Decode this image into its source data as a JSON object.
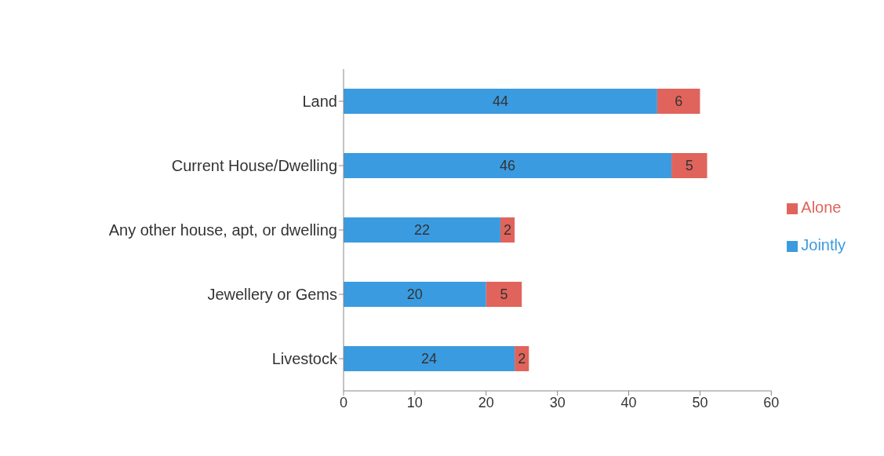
{
  "chart_data": {
    "type": "bar",
    "orientation": "horizontal",
    "stacked": true,
    "categories": [
      "Land",
      "Current House/Dwelling",
      "Any other house, apt, or dwelling",
      "Jewellery or Gems",
      "Livestock"
    ],
    "series": [
      {
        "name": "Jointly",
        "color": "#3a9be0",
        "values": [
          44,
          46,
          22,
          20,
          24
        ]
      },
      {
        "name": "Alone",
        "color": "#e0645c",
        "values": [
          6,
          5,
          2,
          5,
          2
        ]
      }
    ],
    "xlim": [
      0,
      60
    ],
    "xticks": [
      0,
      10,
      20,
      30,
      40,
      50,
      60
    ],
    "data_labels": true,
    "legend": "right",
    "grid": false
  }
}
